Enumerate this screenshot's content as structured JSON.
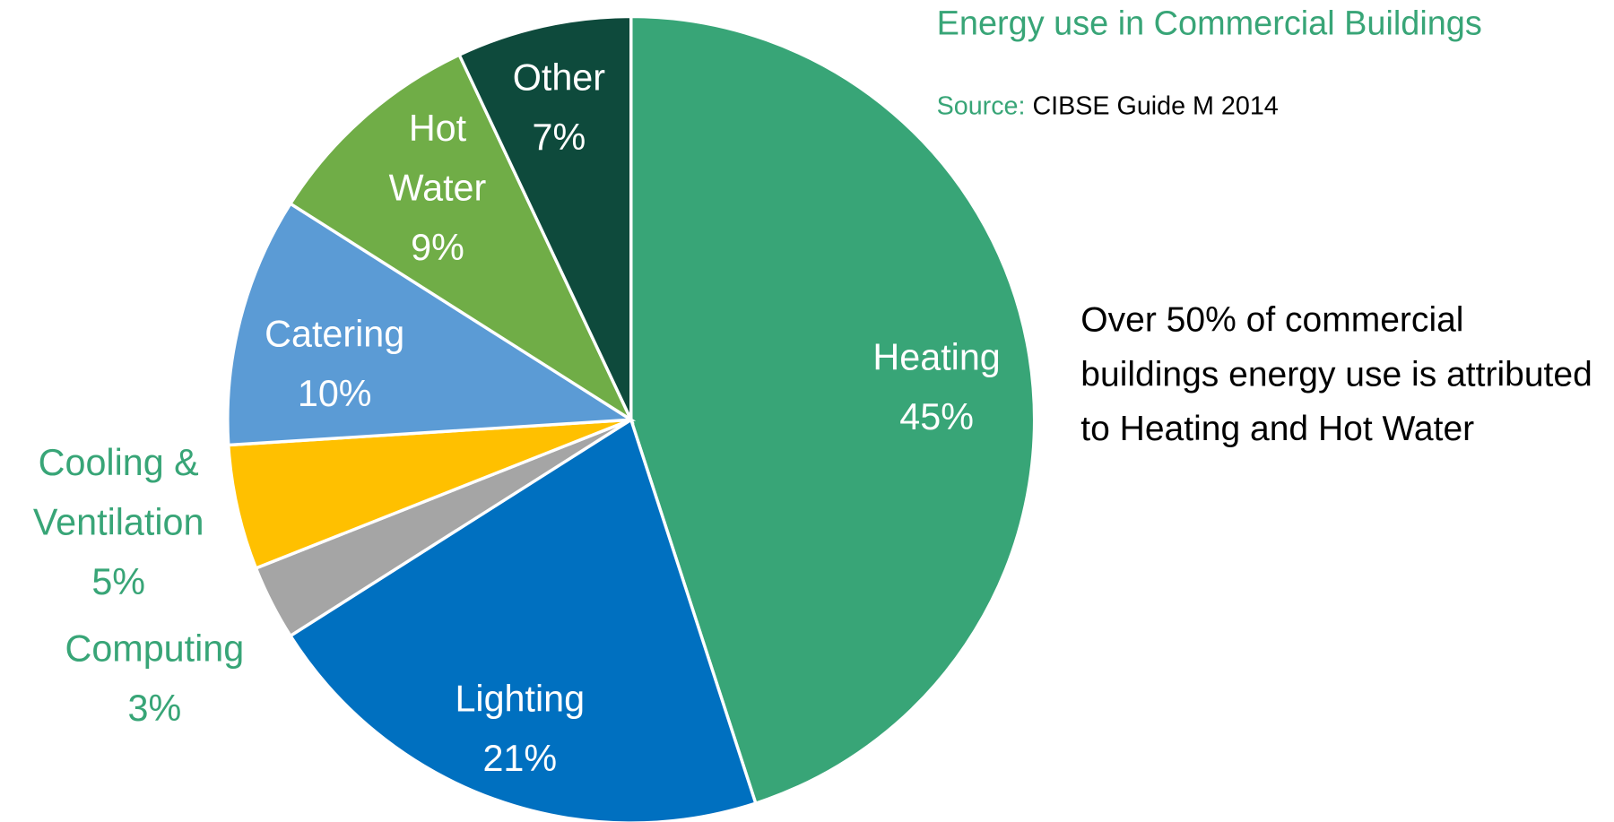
{
  "chart_data": {
    "type": "pie",
    "title": "Energy use in Commercial Buildings",
    "source_label": "Source:",
    "source": "CIBSE Guide M 2014",
    "annotation": "Over 50% of commercial buildings energy use is attributed to Heating and Hot Water",
    "categories": [
      "Heating",
      "Lighting",
      "Computing",
      "Cooling & Ventilation",
      "Catering",
      "Hot Water",
      "Other"
    ],
    "values": [
      45,
      21,
      3,
      5,
      10,
      9,
      7
    ],
    "value_labels": [
      "45%",
      "21%",
      "3%",
      "5%",
      "10%",
      "9%",
      "7%"
    ],
    "colors": [
      "#38a577",
      "#0070c0",
      "#a5a5a5",
      "#ffc000",
      "#5b9bd5",
      "#70ad47",
      "#0e4a3c"
    ]
  }
}
